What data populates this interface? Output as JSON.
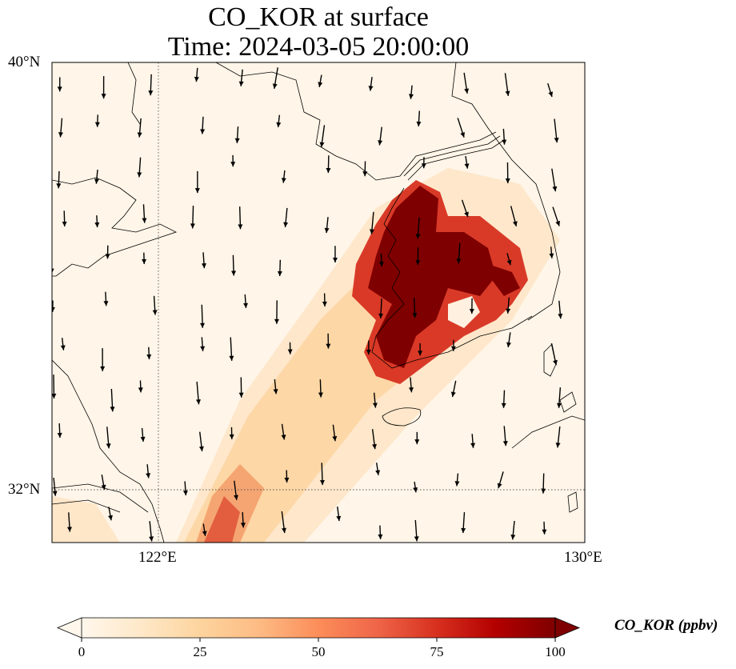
{
  "title": {
    "line1": "CO_KOR at surface",
    "line2": "Time: 2024-03-05 20:00:00"
  },
  "map": {
    "lon_range": [
      120,
      130
    ],
    "lat_range": [
      31,
      40
    ],
    "gridlines": {
      "lons": [
        122
      ],
      "lats": [
        32
      ],
      "style": "dotted"
    },
    "lat_labels": [
      "40°N",
      "32°N"
    ],
    "lon_labels": [
      "122°E",
      "130°E"
    ],
    "field_name": "CO_KOR",
    "colormap": "OrRd",
    "plume": [
      {
        "lon": 126.9,
        "lat": 37.4,
        "value": 100
      },
      {
        "lon": 127.1,
        "lat": 36.6,
        "value": 100
      },
      {
        "lon": 126.9,
        "lat": 35.6,
        "value": 100
      },
      {
        "lon": 127.7,
        "lat": 37.2,
        "value": 90
      },
      {
        "lon": 128.5,
        "lat": 36.6,
        "value": 90
      },
      {
        "lon": 128.2,
        "lat": 35.5,
        "value": 75
      },
      {
        "lon": 126.2,
        "lat": 36.2,
        "value": 60
      },
      {
        "lon": 126.3,
        "lat": 34.8,
        "value": 70
      },
      {
        "lon": 125.6,
        "lat": 35.0,
        "value": 40
      },
      {
        "lon": 124.8,
        "lat": 34.0,
        "value": 28
      },
      {
        "lon": 124.0,
        "lat": 33.0,
        "value": 24
      },
      {
        "lon": 123.2,
        "lat": 32.0,
        "value": 30
      },
      {
        "lon": 123.0,
        "lat": 31.4,
        "value": 55
      },
      {
        "lon": 120.3,
        "lat": 31.4,
        "value": 18
      },
      {
        "lon": 128.4,
        "lat": 34.6,
        "value": 20
      }
    ],
    "wind_vectors_description": "quiver"
  },
  "colorbar": {
    "min": 0,
    "max": 100,
    "ticks": [
      "0",
      "25",
      "50",
      "75",
      "100"
    ],
    "label": "CO_KOR (ppbv)",
    "extend": "both"
  }
}
